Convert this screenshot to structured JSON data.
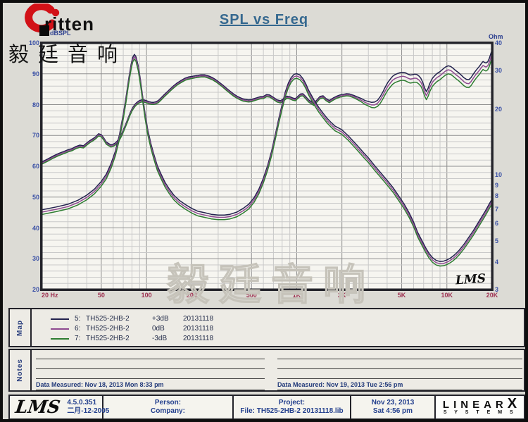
{
  "branding": {
    "logo_text": "ritten",
    "logo_cn": "毅廷音响",
    "watermark": "毅廷音响",
    "lms_script": "LMS",
    "swoosh_color": "#d21117"
  },
  "chart_data": {
    "type": "line",
    "title": "SPL vs Freq",
    "x_axis": {
      "scale": "log",
      "min": 20,
      "max": 20000,
      "ticks": [
        [
          20,
          "20 Hz"
        ],
        [
          50,
          "50"
        ],
        [
          100,
          "100"
        ],
        [
          200,
          "200"
        ],
        [
          500,
          "500"
        ],
        [
          1000,
          "1K"
        ],
        [
          2000,
          "2K"
        ],
        [
          5000,
          "5K"
        ],
        [
          10000,
          "10K"
        ],
        [
          20000,
          "20K"
        ]
      ]
    },
    "y_left": {
      "label": "dBSPL",
      "scale": "linear",
      "min": 20,
      "max": 100,
      "ticks": [
        100,
        90,
        80,
        70,
        60,
        50,
        40,
        30,
        20
      ],
      "minor_step": 2
    },
    "y_right": {
      "label": "Ohm",
      "scale": "log",
      "min": 3,
      "max": 40,
      "ticks": [
        40,
        30,
        20,
        10,
        9,
        8,
        7,
        6,
        5,
        4,
        3
      ]
    },
    "grid": {
      "minor_color": "#c9c9c9",
      "major_color": "#8f8f8f"
    },
    "offset_transition": {
      "from_hz": 2200,
      "to_hz": 4500
    },
    "series": [
      {
        "legend_num": "5:",
        "model": "TH525-2HB-2",
        "level": "+3dB",
        "date": "20131118",
        "color": "#23224e",
        "spl_offset_lf": 0.35,
        "spl_offset_hf": 1.3,
        "imp_scale": 1.05
      },
      {
        "legend_num": "6:",
        "model": "TH525-2HB-2",
        "level": "0dB",
        "date": "20131118",
        "color": "#8e4a90",
        "spl_offset_lf": 0.0,
        "spl_offset_hf": 0.0,
        "imp_scale": 1.025
      },
      {
        "legend_num": "7:",
        "model": "TH525-2HB-2",
        "level": "-3dB",
        "date": "20131118",
        "color": "#2e7d32",
        "spl_offset_lf": -0.35,
        "spl_offset_hf": -1.3,
        "imp_scale": 1.0
      }
    ],
    "spl_base": [
      [
        20,
        61
      ],
      [
        22,
        62
      ],
      [
        24,
        63
      ],
      [
        26,
        63.8
      ],
      [
        28,
        64.4
      ],
      [
        30,
        65
      ],
      [
        32,
        65.4
      ],
      [
        34,
        66.1
      ],
      [
        36,
        66.5
      ],
      [
        38,
        66.3
      ],
      [
        40,
        67.2
      ],
      [
        42,
        68
      ],
      [
        44,
        68.6
      ],
      [
        46,
        69.3
      ],
      [
        48,
        70.2
      ],
      [
        50,
        69.9
      ],
      [
        52,
        68.8
      ],
      [
        54,
        67.5
      ],
      [
        56,
        67
      ],
      [
        58,
        66.6
      ],
      [
        60,
        66.8
      ],
      [
        62,
        67.2
      ],
      [
        64,
        67.9
      ],
      [
        66,
        68.8
      ],
      [
        68,
        70
      ],
      [
        70,
        71.4
      ],
      [
        72,
        72.8
      ],
      [
        74,
        74.2
      ],
      [
        76,
        75.7
      ],
      [
        78,
        77.1
      ],
      [
        80,
        78.2
      ],
      [
        82,
        79.1
      ],
      [
        84,
        79.8
      ],
      [
        86,
        80.3
      ],
      [
        88,
        80.7
      ],
      [
        90,
        81
      ],
      [
        93,
        81.2
      ],
      [
        96,
        81.2
      ],
      [
        100,
        80.9
      ],
      [
        104,
        80.6
      ],
      [
        108,
        80.4
      ],
      [
        112,
        80.4
      ],
      [
        116,
        80.6
      ],
      [
        120,
        81
      ],
      [
        126,
        82
      ],
      [
        132,
        83
      ],
      [
        138,
        83.9
      ],
      [
        145,
        84.9
      ],
      [
        152,
        85.8
      ],
      [
        160,
        86.7
      ],
      [
        170,
        87.5
      ],
      [
        180,
        88.2
      ],
      [
        190,
        88.6
      ],
      [
        200,
        88.8
      ],
      [
        215,
        89.1
      ],
      [
        230,
        89.3
      ],
      [
        245,
        89.3
      ],
      [
        260,
        88.9
      ],
      [
        275,
        88.4
      ],
      [
        290,
        87.7
      ],
      [
        305,
        86.9
      ],
      [
        320,
        86.1
      ],
      [
        340,
        85
      ],
      [
        360,
        84
      ],
      [
        380,
        83.1
      ],
      [
        400,
        82.4
      ],
      [
        420,
        81.9
      ],
      [
        440,
        81.5
      ],
      [
        460,
        81.3
      ],
      [
        480,
        81.2
      ],
      [
        500,
        81.3
      ],
      [
        520,
        81.6
      ],
      [
        545,
        81.9
      ],
      [
        570,
        82.2
      ],
      [
        600,
        82.3
      ],
      [
        630,
        82.9
      ],
      [
        660,
        82.8
      ],
      [
        700,
        82
      ],
      [
        740,
        81.2
      ],
      [
        780,
        80.9
      ],
      [
        820,
        81.6
      ],
      [
        860,
        82.4
      ],
      [
        900,
        82.2
      ],
      [
        940,
        81.8
      ],
      [
        980,
        81.6
      ],
      [
        1020,
        82.4
      ],
      [
        1060,
        83.1
      ],
      [
        1100,
        83.2
      ],
      [
        1150,
        82.2
      ],
      [
        1200,
        81.2
      ],
      [
        1250,
        80.6
      ],
      [
        1300,
        80.1
      ],
      [
        1360,
        81.1
      ],
      [
        1430,
        82.3
      ],
      [
        1500,
        82.5
      ],
      [
        1570,
        81.6
      ],
      [
        1650,
        81
      ],
      [
        1750,
        81.8
      ],
      [
        1850,
        82.4
      ],
      [
        1950,
        82.8
      ],
      [
        2050,
        83
      ],
      [
        2150,
        83.2
      ],
      [
        2250,
        83.1
      ],
      [
        2400,
        82.6
      ],
      [
        2550,
        82
      ],
      [
        2700,
        81.4
      ],
      [
        2850,
        80.7
      ],
      [
        3000,
        80.3
      ],
      [
        3150,
        79.9
      ],
      [
        3300,
        79.9
      ],
      [
        3450,
        80.4
      ],
      [
        3600,
        81.5
      ],
      [
        3750,
        83
      ],
      [
        3900,
        84.6
      ],
      [
        4050,
        86
      ],
      [
        4200,
        87
      ],
      [
        4350,
        87.9
      ],
      [
        4500,
        88.4
      ],
      [
        4700,
        88.8
      ],
      [
        4900,
        89.1
      ],
      [
        5100,
        89.2
      ],
      [
        5300,
        89
      ],
      [
        5500,
        88.6
      ],
      [
        5700,
        88.3
      ],
      [
        5900,
        88.4
      ],
      [
        6100,
        88.6
      ],
      [
        6300,
        88.5
      ],
      [
        6500,
        88
      ],
      [
        6700,
        87.3
      ],
      [
        6900,
        86
      ],
      [
        7100,
        84.2
      ],
      [
        7300,
        82.9
      ],
      [
        7500,
        84
      ],
      [
        7700,
        85.6
      ],
      [
        8000,
        87.2
      ],
      [
        8300,
        88.1
      ],
      [
        8600,
        88.8
      ],
      [
        9000,
        89.4
      ],
      [
        9400,
        90.2
      ],
      [
        9800,
        90.9
      ],
      [
        10200,
        91.3
      ],
      [
        10600,
        91.1
      ],
      [
        11000,
        90.5
      ],
      [
        11500,
        89.7
      ],
      [
        12000,
        89
      ],
      [
        12500,
        88.2
      ],
      [
        13000,
        87.4
      ],
      [
        13500,
        86.9
      ],
      [
        14000,
        86.8
      ],
      [
        14500,
        87.5
      ],
      [
        15000,
        88.6
      ],
      [
        15500,
        89.6
      ],
      [
        16000,
        90.4
      ],
      [
        16500,
        91.2
      ],
      [
        17000,
        92.1
      ],
      [
        17400,
        92.7
      ],
      [
        17800,
        92.4
      ],
      [
        18200,
        92.2
      ],
      [
        18700,
        92.6
      ],
      [
        19200,
        93.8
      ],
      [
        19600,
        95.2
      ],
      [
        20000,
        96.5
      ]
    ],
    "impedance": [
      [
        20,
        6.6
      ],
      [
        25,
        6.8
      ],
      [
        30,
        7
      ],
      [
        35,
        7.3
      ],
      [
        40,
        7.7
      ],
      [
        45,
        8.2
      ],
      [
        50,
        8.9
      ],
      [
        54,
        9.6
      ],
      [
        58,
        10.7
      ],
      [
        62,
        12.2
      ],
      [
        66,
        14.5
      ],
      [
        70,
        18
      ],
      [
        73,
        21.5
      ],
      [
        76,
        26
      ],
      [
        79,
        30.5
      ],
      [
        81,
        32.8
      ],
      [
        83,
        33.8
      ],
      [
        85,
        33
      ],
      [
        88,
        30
      ],
      [
        91,
        26
      ],
      [
        94,
        22
      ],
      [
        98,
        18
      ],
      [
        102,
        15.3
      ],
      [
        107,
        13.2
      ],
      [
        112,
        11.8
      ],
      [
        118,
        10.5
      ],
      [
        125,
        9.6
      ],
      [
        133,
        8.8
      ],
      [
        142,
        8.2
      ],
      [
        152,
        7.7
      ],
      [
        165,
        7.3
      ],
      [
        180,
        7
      ],
      [
        200,
        6.7
      ],
      [
        220,
        6.5
      ],
      [
        245,
        6.4
      ],
      [
        270,
        6.3
      ],
      [
        300,
        6.25
      ],
      [
        330,
        6.25
      ],
      [
        360,
        6.3
      ],
      [
        400,
        6.45
      ],
      [
        440,
        6.7
      ],
      [
        480,
        7
      ],
      [
        520,
        7.5
      ],
      [
        560,
        8.2
      ],
      [
        600,
        9.2
      ],
      [
        640,
        10.5
      ],
      [
        680,
        12.2
      ],
      [
        720,
        14.5
      ],
      [
        760,
        17.2
      ],
      [
        800,
        20
      ],
      [
        840,
        22.8
      ],
      [
        880,
        25
      ],
      [
        920,
        26.5
      ],
      [
        960,
        27.4
      ],
      [
        1000,
        27.6
      ],
      [
        1050,
        27.2
      ],
      [
        1100,
        26.2
      ],
      [
        1150,
        24.8
      ],
      [
        1200,
        23.2
      ],
      [
        1300,
        21
      ],
      [
        1400,
        19.4
      ],
      [
        1500,
        18.2
      ],
      [
        1600,
        17.2
      ],
      [
        1700,
        16.5
      ],
      [
        1800,
        15.9
      ],
      [
        1900,
        15.6
      ],
      [
        2000,
        15.3
      ],
      [
        2200,
        14.4
      ],
      [
        2400,
        13.5
      ],
      [
        2600,
        12.7
      ],
      [
        2800,
        12
      ],
      [
        3000,
        11.4
      ],
      [
        3300,
        10.5
      ],
      [
        3600,
        9.8
      ],
      [
        4000,
        9
      ],
      [
        4400,
        8.3
      ],
      [
        4800,
        7.6
      ],
      [
        5200,
        7
      ],
      [
        5600,
        6.4
      ],
      [
        6000,
        5.8
      ],
      [
        6400,
        5.2
      ],
      [
        6800,
        4.8
      ],
      [
        7200,
        4.45
      ],
      [
        7600,
        4.18
      ],
      [
        8000,
        4
      ],
      [
        8500,
        3.88
      ],
      [
        9000,
        3.84
      ],
      [
        9500,
        3.85
      ],
      [
        10000,
        3.9
      ],
      [
        10500,
        3.97
      ],
      [
        11000,
        4.06
      ],
      [
        11500,
        4.17
      ],
      [
        12000,
        4.3
      ],
      [
        13000,
        4.6
      ],
      [
        14000,
        4.95
      ],
      [
        15000,
        5.3
      ],
      [
        16000,
        5.7
      ],
      [
        17000,
        6.1
      ],
      [
        18000,
        6.5
      ],
      [
        19000,
        6.95
      ],
      [
        20000,
        7.4
      ]
    ],
    "in_plot_logo": "LMS"
  },
  "map_panel": {
    "label": "Map"
  },
  "notes_panel": {
    "label": "Notes",
    "left_measured": "Data Measured: Nov 18, 2013  Mon  8:33 pm",
    "right_measured": "Data Measured: Nov 19, 2013  Tue  2:56 pm"
  },
  "status_bar": {
    "version": "4.5.0.351",
    "version_date": "二月-12-2005",
    "person_label": "Person:",
    "company_label": "Company:",
    "project_label": "Project:",
    "file_label": "File: TH525-2HB-2 20131118.lib",
    "date": "Nov 23, 2013",
    "time": "Sat 4:56 pm",
    "brand": {
      "linear": "LINEAR",
      "x": "X",
      "systems": "S Y S T E M S"
    }
  }
}
